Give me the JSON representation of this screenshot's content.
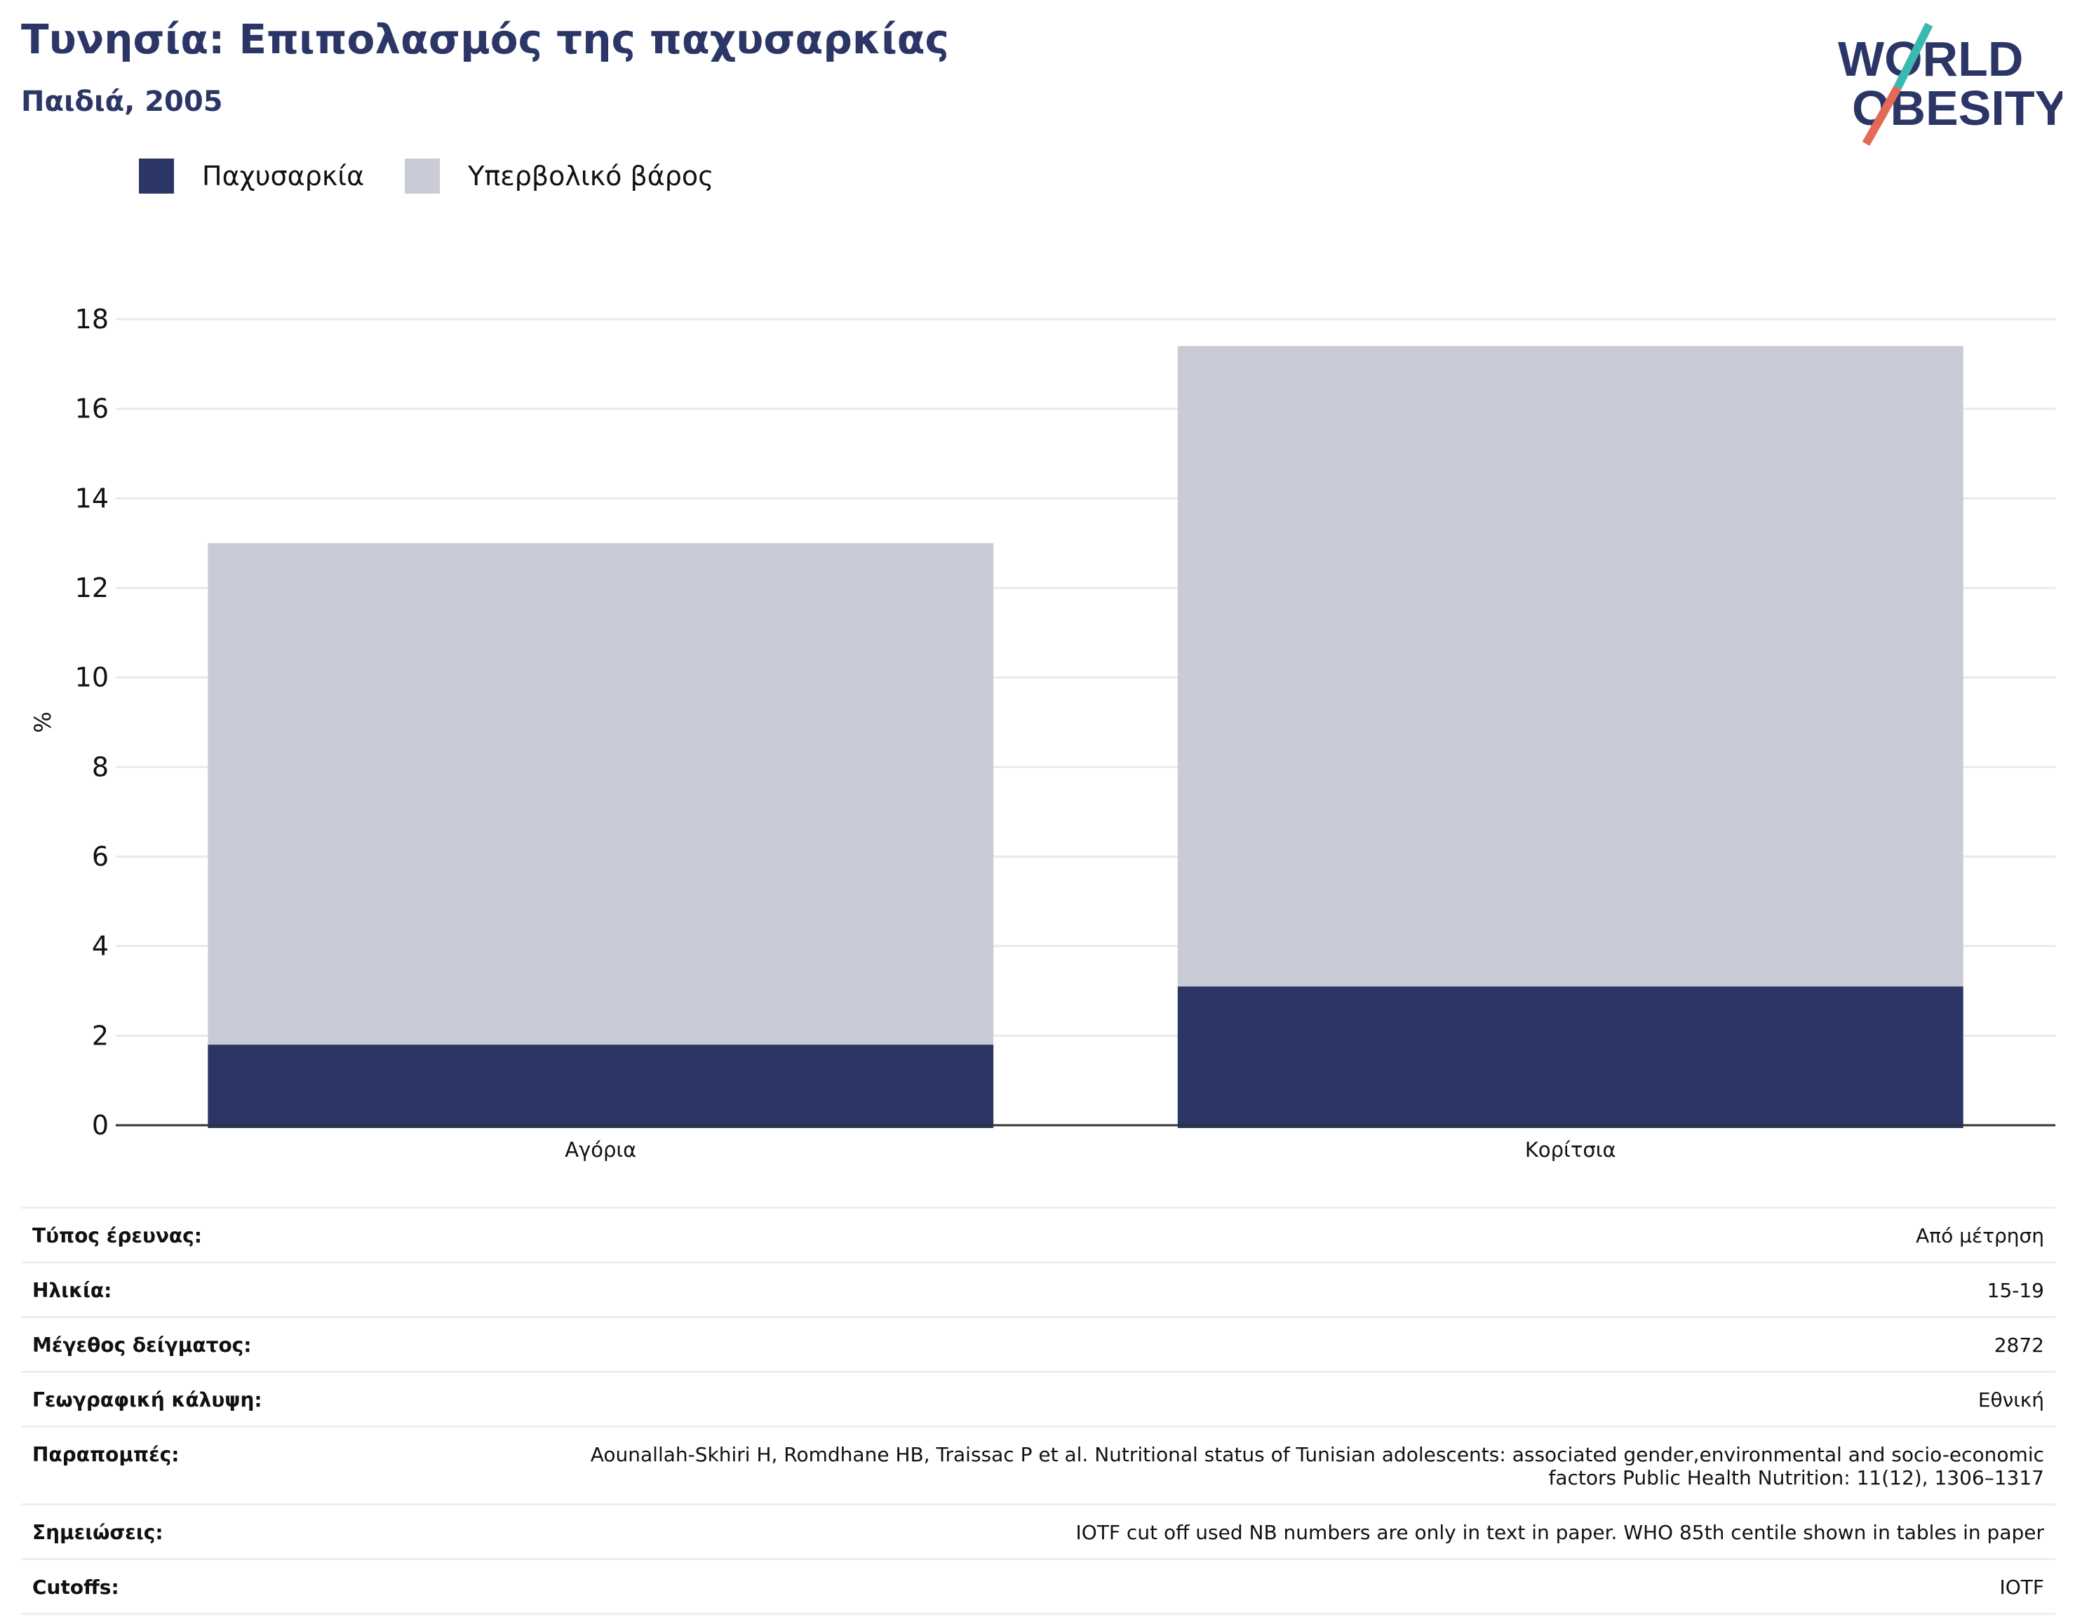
{
  "header": {
    "title": "Τυνησία: Επιπολασμός της παχυσαρκίας",
    "subtitle": "Παιδιά, 2005"
  },
  "logo": {
    "line1": "WORLD",
    "line2": "OBESITY",
    "slash_colors": [
      "#3bb8b0",
      "#e56a56"
    ]
  },
  "colors": {
    "obesity": "#2b3666",
    "overweight": "#c9cbd7",
    "grid": "#e8e9ef",
    "axis": "#333333"
  },
  "chart_data": {
    "type": "bar",
    "stacked": true,
    "categories": [
      "Αγόρια",
      "Κορίτσια"
    ],
    "series": [
      {
        "name": "Παχυσαρκία",
        "values": [
          1.8,
          3.1
        ]
      },
      {
        "name": "Υπερβολικό βάρος",
        "values": [
          11.2,
          14.3
        ]
      }
    ],
    "ylabel": "%",
    "ylim": [
      0,
      18
    ],
    "yticks": [
      0,
      2,
      4,
      6,
      8,
      10,
      12,
      14,
      16,
      18
    ],
    "grid": true,
    "legend": "top-left"
  },
  "info": {
    "rows": [
      {
        "label": "Τύπος έρευνας:",
        "value": "Από μέτρηση"
      },
      {
        "label": "Ηλικία:",
        "value": "15-19"
      },
      {
        "label": "Μέγεθος δείγματος:",
        "value": "2872"
      },
      {
        "label": "Γεωγραφική κάλυψη:",
        "value": "Εθνική"
      },
      {
        "label": "Παραπομπές:",
        "value": "Aounallah-Skhiri H, Romdhane HB, Traissac P et al. Nutritional status of Tunisian adolescents: associated gender,environmental and socio-economic factors Public Health Nutrition: 11(12), 1306–1317"
      },
      {
        "label": "Σημειώσεις:",
        "value": "IOTF cut off used NB numbers are only in text in paper. WHO 85th centile shown in tables in paper"
      },
      {
        "label": "Cutoffs:",
        "value": "IOTF"
      }
    ]
  }
}
